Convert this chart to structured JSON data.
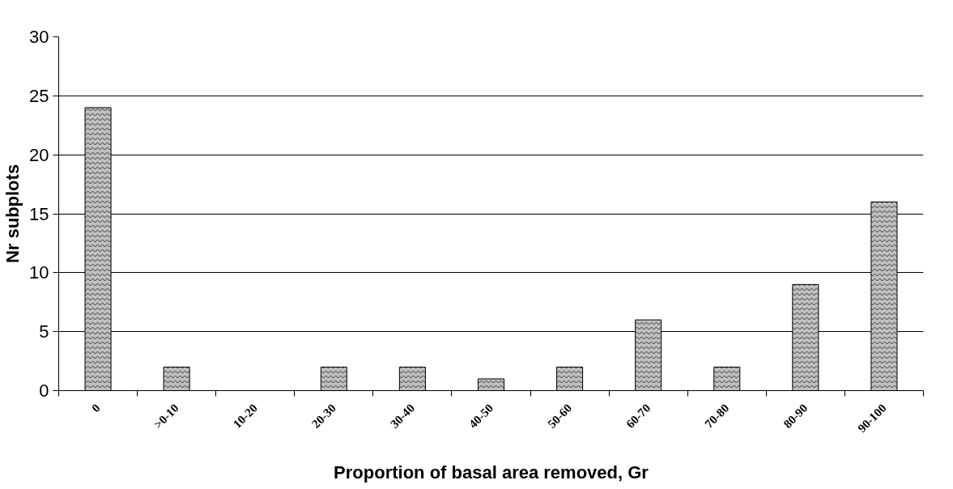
{
  "chart_data": {
    "type": "bar",
    "xlabel": "Proportion of basal area removed, Gr",
    "ylabel": "Nr subplots",
    "categories": [
      "0",
      ">0-10",
      "10-20",
      "20-30",
      "30-40",
      "40-50",
      "50-60",
      "60-70",
      "70-80",
      "80-90",
      "90-100"
    ],
    "values": [
      24,
      2,
      0,
      2,
      2,
      1,
      2,
      6,
      2,
      9,
      16
    ],
    "color": "#c0c0c0",
    "ylim": [
      0,
      30
    ],
    "yticks": [
      0,
      5,
      10,
      15,
      20,
      25,
      30
    ],
    "grid": "y"
  }
}
